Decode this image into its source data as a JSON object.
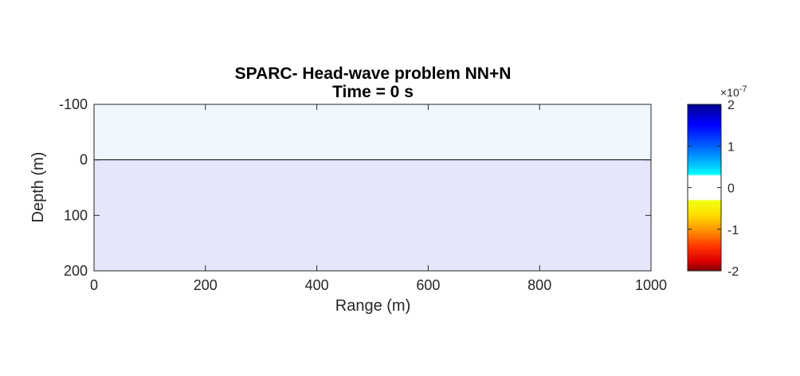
{
  "chart_data": {
    "type": "heatmap",
    "title": "SPARC-  Head-wave problem NN+N",
    "subtitle": "Time = 0 s",
    "xlabel": "Range (m)",
    "ylabel": "Depth (m)",
    "xlim": [
      0,
      1000
    ],
    "ylim": [
      -100,
      200
    ],
    "y_reversed": true,
    "xticks": [
      0,
      200,
      400,
      600,
      800,
      1000
    ],
    "xtick_labels": [
      "0",
      "200",
      "400",
      "600",
      "800",
      "1000"
    ],
    "yticks": [
      -100,
      0,
      100,
      200
    ],
    "ytick_labels": [
      "-100",
      "0",
      "100",
      "200"
    ],
    "layers": [
      {
        "from_depth": -100,
        "to_depth": 0,
        "color": "#f0f8ff"
      },
      {
        "from_depth": 0,
        "to_depth": 200,
        "color": "#e6e6fa"
      }
    ],
    "interface_depth": 0,
    "colorbar": {
      "range": [
        -2,
        2
      ],
      "ticks": [
        2,
        1,
        0,
        -1,
        -2
      ],
      "tick_labels": [
        "2",
        "1",
        "0",
        "-1",
        "-2"
      ],
      "multiplier_label": "×10",
      "multiplier_exponent": "-7",
      "colormap": "jet-with-white-center"
    }
  }
}
